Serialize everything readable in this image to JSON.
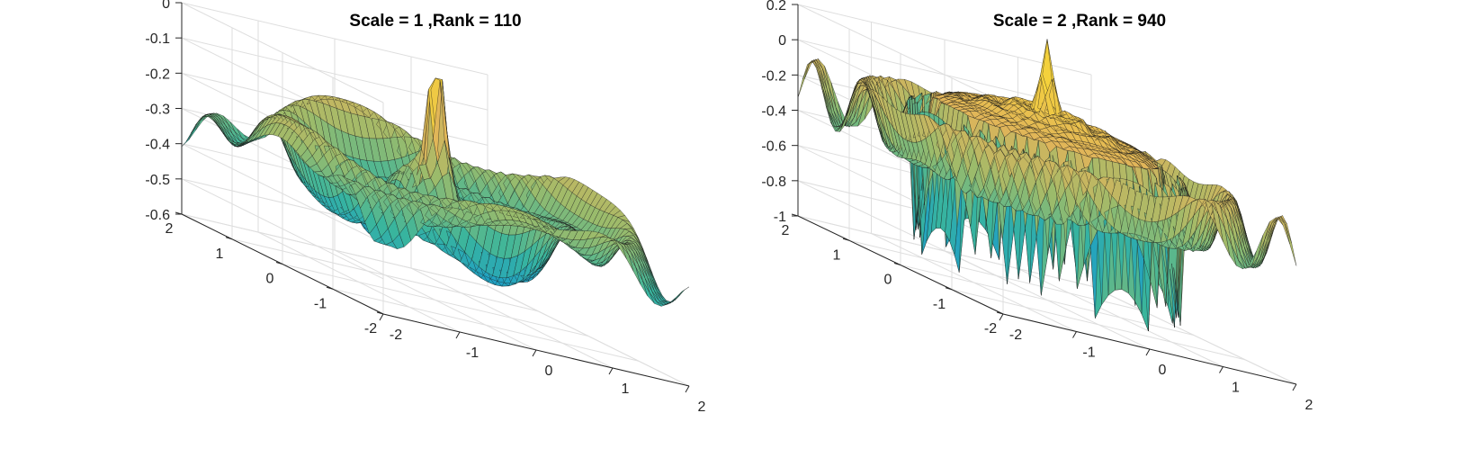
{
  "chart_data": [
    {
      "type": "surface",
      "title": "Scale = 1 ,Rank = 110",
      "x_ticks": [
        "-2",
        "-1",
        "0",
        "1",
        "2"
      ],
      "y_ticks": [
        "-2",
        "-1",
        "0",
        "1",
        "2"
      ],
      "z_ticks": [
        "-0.6",
        "-0.5",
        "-0.4",
        "-0.3",
        "-0.2",
        "-0.1",
        "0"
      ],
      "xlim": [
        -2,
        2
      ],
      "ylim": [
        -2,
        2
      ],
      "zlim": [
        -0.6,
        0
      ],
      "grid": true,
      "colormap": [
        "#1f5fd8",
        "#1d9ec8",
        "#39b59d",
        "#9bbb6b",
        "#e0b45a",
        "#f4d13c"
      ],
      "surface": "oscillating radial ripple with a sharp central peak"
    },
    {
      "type": "surface",
      "title": "Scale = 2 ,Rank = 940",
      "x_ticks": [
        "-2",
        "-1",
        "0",
        "1",
        "2"
      ],
      "y_ticks": [
        "-2",
        "-1",
        "0",
        "1",
        "2"
      ],
      "z_ticks": [
        "-1",
        "-0.8",
        "-0.6",
        "-0.4",
        "-0.2",
        "0",
        "0.2"
      ],
      "xlim": [
        -2,
        2
      ],
      "ylim": [
        -2,
        2
      ],
      "zlim": [
        -1,
        0.2
      ],
      "grid": true,
      "colormap": [
        "#1f5fd8",
        "#1d9ec8",
        "#39b59d",
        "#9bbb6b",
        "#e0b45a",
        "#f4d13c"
      ],
      "surface": "stepped concentric rings forming a bowl with a central spike"
    }
  ]
}
